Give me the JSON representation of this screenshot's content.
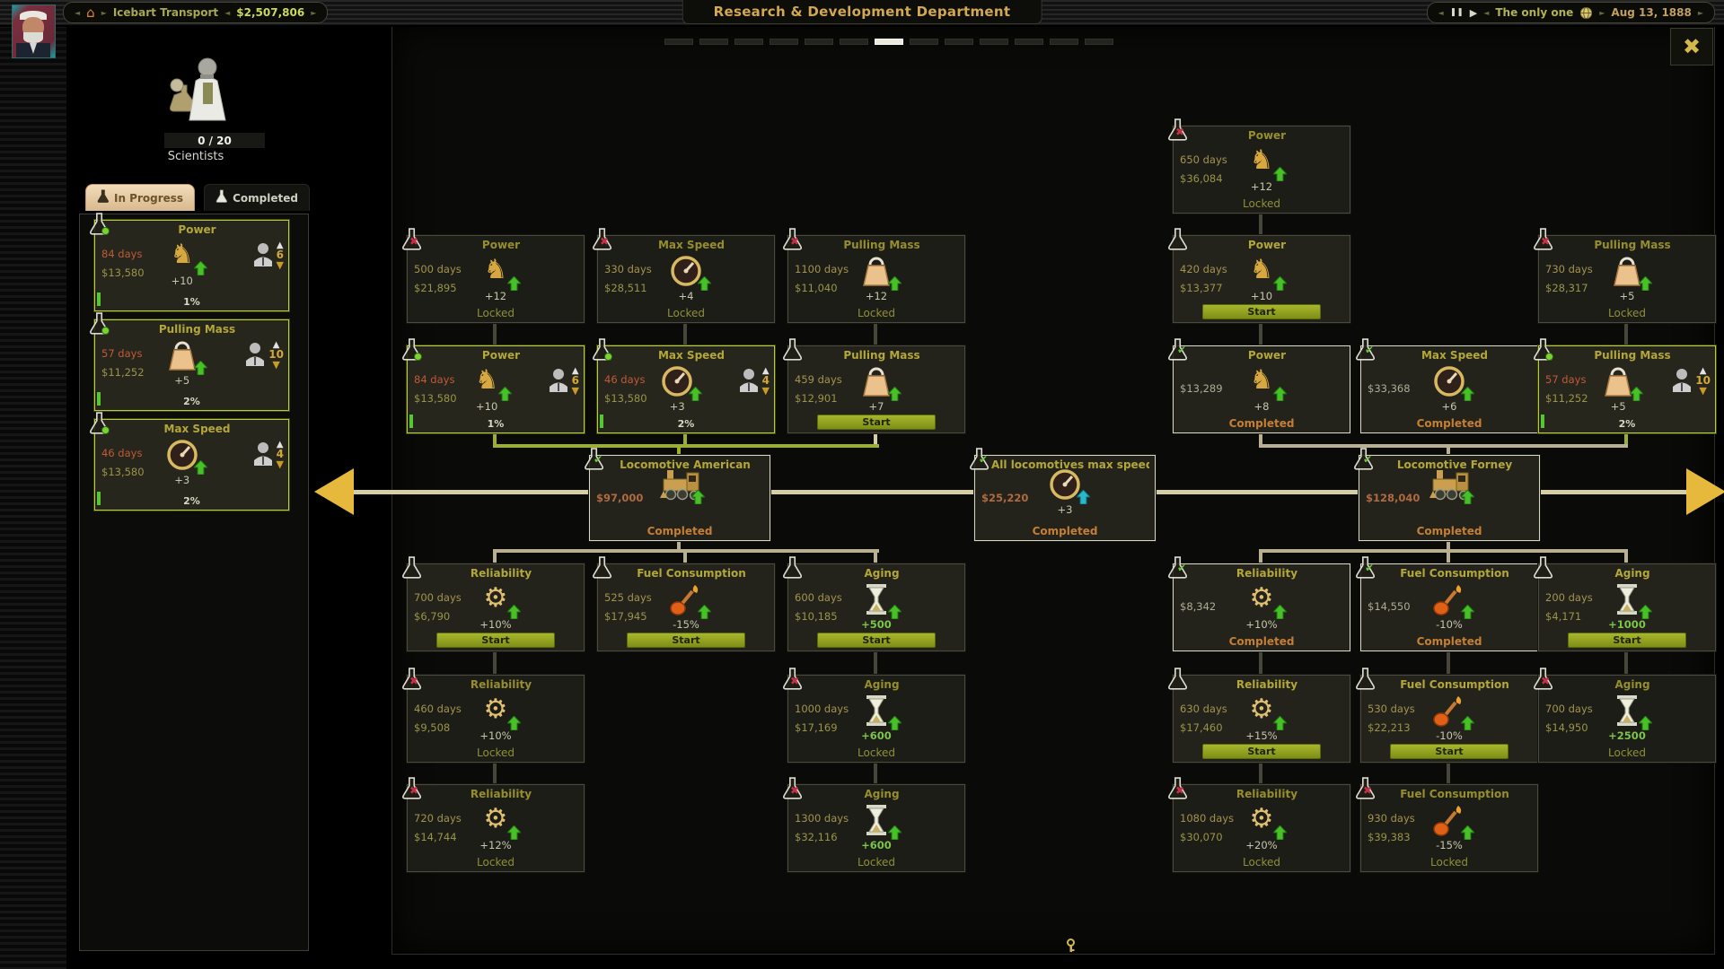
{
  "top_bar": {
    "company": {
      "name": "Icebart Transport",
      "money": "$2,507,806"
    },
    "title": "Research & Development Department",
    "clock": {
      "speed_label": "The only one",
      "date": "Aug 13, 1888"
    },
    "pager": {
      "count": 13,
      "active_index": 6
    }
  },
  "icons": {
    "home": "⌂",
    "close": "✖",
    "pause": "❚❚",
    "play": "▶",
    "sep_left": "◄",
    "sep_right": "►",
    "up_arrow": "▲",
    "down_arrow": "▼"
  },
  "labels": {
    "start": "Start",
    "locked": "Locked",
    "completed": "Completed"
  },
  "sidebar": {
    "scientists": {
      "count_label": "0 / 20",
      "label": "Scientists"
    },
    "tabs": [
      {
        "label": "In Progress",
        "active": true
      },
      {
        "label": "Completed",
        "active": false
      }
    ],
    "cards": [
      {
        "title": "Power",
        "days": "84 days",
        "cost": "$13,580",
        "effect": "+10",
        "icon": "power",
        "status": "progress",
        "scientists": "6",
        "progress": "1%"
      },
      {
        "title": "Pulling Mass",
        "days": "57 days",
        "cost": "$11,252",
        "effect": "+5",
        "icon": "mass",
        "status": "progress",
        "scientists": "10",
        "progress": "2%"
      },
      {
        "title": "Max Speed",
        "days": "46 days",
        "cost": "$13,580",
        "effect": "+3",
        "icon": "speed",
        "status": "progress",
        "scientists": "4",
        "progress": "2%"
      }
    ]
  },
  "tree": {
    "nodes": [
      {
        "title": "Power",
        "days": "650 days",
        "cost": "$36,084",
        "effect": "+12",
        "icon": "power",
        "status": "locked",
        "col": "c4",
        "row": "r0"
      },
      {
        "title": "Power",
        "days": "500 days",
        "cost": "$21,895",
        "effect": "+12",
        "icon": "power",
        "status": "locked",
        "col": "c1",
        "row": "r1"
      },
      {
        "title": "Max Speed",
        "days": "330 days",
        "cost": "$28,511",
        "effect": "+4",
        "icon": "speed",
        "status": "locked",
        "col": "c2",
        "row": "r1"
      },
      {
        "title": "Pulling Mass",
        "days": "1100 days",
        "cost": "$11,040",
        "effect": "+12",
        "icon": "mass",
        "status": "locked",
        "col": "c3",
        "row": "r1"
      },
      {
        "title": "Power",
        "days": "420 days",
        "cost": "$13,377",
        "effect": "+10",
        "icon": "power",
        "status": "start",
        "col": "c4",
        "row": "r1"
      },
      {
        "title": "Pulling Mass",
        "days": "730 days",
        "cost": "$28,317",
        "effect": "+5",
        "icon": "mass",
        "status": "locked",
        "col": "c6",
        "row": "r1"
      },
      {
        "title": "Power",
        "days": "84 days",
        "cost": "$13,580",
        "effect": "+10",
        "icon": "power",
        "status": "progress",
        "col": "c1",
        "row": "r2",
        "scientists": "6",
        "progress": "1%"
      },
      {
        "title": "Max Speed",
        "days": "46 days",
        "cost": "$13,580",
        "effect": "+3",
        "icon": "speed",
        "status": "progress",
        "col": "c2",
        "row": "r2",
        "scientists": "4",
        "progress": "2%"
      },
      {
        "title": "Pulling Mass",
        "days": "459 days",
        "cost": "$12,901",
        "effect": "+7",
        "icon": "mass",
        "status": "start",
        "col": "c3",
        "row": "r2"
      },
      {
        "title": "Power",
        "cost": "$13,289",
        "effect": "+8",
        "icon": "power",
        "status": "completed",
        "col": "c4",
        "row": "r2"
      },
      {
        "title": "Max Speed",
        "cost": "$33,368",
        "effect": "+6",
        "icon": "speed",
        "status": "completed",
        "col": "c5",
        "row": "r2"
      },
      {
        "title": "Pulling Mass",
        "days": "57 days",
        "cost": "$11,252",
        "effect": "+5",
        "icon": "mass",
        "status": "progress",
        "col": "c6",
        "row": "r2",
        "scientists": "10",
        "progress": "2%"
      },
      {
        "title": "Locomotive American",
        "cost": "$97,000",
        "icon": "loco",
        "status": "completed",
        "col": "am",
        "row": "loco",
        "big": true
      },
      {
        "title": "All locomotives max speed",
        "cost": "$25,220",
        "effect": "+3",
        "icon": "speed2",
        "status": "completed",
        "col": "all",
        "row": "loco",
        "big": true
      },
      {
        "title": "Locomotive Forney",
        "cost": "$128,040",
        "icon": "loco",
        "status": "completed",
        "col": "fo",
        "row": "loco",
        "big": true
      },
      {
        "title": "Reliability",
        "days": "700 days",
        "cost": "$6,790",
        "effect": "+10%",
        "icon": "gear",
        "status": "start",
        "col": "c1",
        "row": "r4"
      },
      {
        "title": "Fuel Consumption",
        "days": "525 days",
        "cost": "$17,945",
        "effect": "-15%",
        "icon": "fuel",
        "status": "start",
        "col": "c2",
        "row": "r4"
      },
      {
        "title": "Aging",
        "days": "600 days",
        "cost": "$10,185",
        "effect": "+500",
        "icon": "hourglass",
        "status": "start",
        "col": "c3",
        "row": "r4"
      },
      {
        "title": "Reliability",
        "cost": "$8,342",
        "effect": "+10%",
        "icon": "gear",
        "status": "completed",
        "col": "c4",
        "row": "r4"
      },
      {
        "title": "Fuel Consumption",
        "cost": "$14,550",
        "effect": "-10%",
        "icon": "fuel",
        "status": "completed",
        "col": "c5",
        "row": "r4"
      },
      {
        "title": "Aging",
        "days": "200 days",
        "cost": "$4,171",
        "effect": "+1000",
        "icon": "hourglass",
        "status": "start",
        "col": "c6",
        "row": "r4"
      },
      {
        "title": "Reliability",
        "days": "460 days",
        "cost": "$9,508",
        "effect": "+10%",
        "icon": "gear",
        "status": "locked",
        "col": "c1",
        "row": "r5"
      },
      {
        "title": "Aging",
        "days": "1000 days",
        "cost": "$17,169",
        "effect": "+600",
        "icon": "hourglass",
        "status": "locked",
        "col": "c3",
        "row": "r5"
      },
      {
        "title": "Reliability",
        "days": "630 days",
        "cost": "$17,460",
        "effect": "+15%",
        "icon": "gear",
        "status": "start",
        "col": "c4",
        "row": "r5"
      },
      {
        "title": "Fuel Consumption",
        "days": "530 days",
        "cost": "$22,213",
        "effect": "-10%",
        "icon": "fuel",
        "status": "start",
        "col": "c5",
        "row": "r5"
      },
      {
        "title": "Aging",
        "days": "700 days",
        "cost": "$14,950",
        "effect": "+2500",
        "icon": "hourglass",
        "status": "locked",
        "col": "c6",
        "row": "r5"
      },
      {
        "title": "Reliability",
        "days": "720 days",
        "cost": "$14,744",
        "effect": "+12%",
        "icon": "gear",
        "status": "locked",
        "col": "c1",
        "row": "r6"
      },
      {
        "title": "Aging",
        "days": "1300 days",
        "cost": "$32,116",
        "effect": "+600",
        "icon": "hourglass",
        "status": "locked",
        "col": "c3",
        "row": "r6"
      },
      {
        "title": "Reliability",
        "days": "1080 days",
        "cost": "$30,070",
        "effect": "+20%",
        "icon": "gear",
        "status": "locked",
        "col": "c4",
        "row": "r6"
      },
      {
        "title": "Fuel Consumption",
        "days": "930 days",
        "cost": "$39,383",
        "effect": "-15%",
        "icon": "fuel",
        "status": "locked",
        "col": "c5",
        "row": "r6"
      }
    ]
  }
}
